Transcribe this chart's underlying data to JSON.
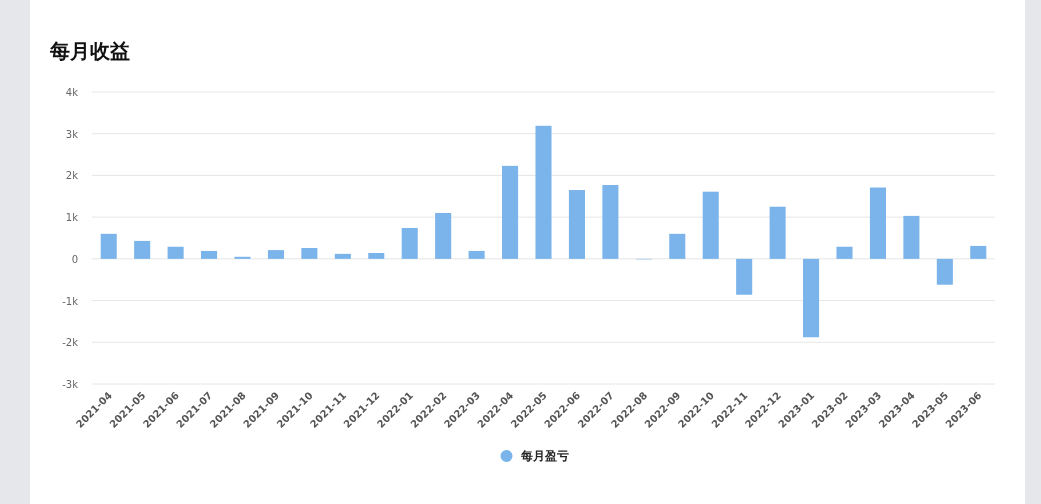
{
  "chart_data": {
    "type": "bar",
    "title": "每月收益",
    "categories": [
      "2021-04",
      "2021-05",
      "2021-06",
      "2021-07",
      "2021-08",
      "2021-09",
      "2021-10",
      "2021-11",
      "2021-12",
      "2022-01",
      "2022-02",
      "2022-03",
      "2022-04",
      "2022-05",
      "2022-06",
      "2022-07",
      "2022-08",
      "2022-09",
      "2022-10",
      "2022-11",
      "2022-12",
      "2023-01",
      "2023-02",
      "2023-03",
      "2023-04",
      "2023-05",
      "2023-06"
    ],
    "series": [
      {
        "name": "每月盈亏",
        "color": "#7ab4ea",
        "values": [
          600,
          430,
          290,
          190,
          50,
          210,
          260,
          120,
          140,
          740,
          1100,
          190,
          2230,
          3190,
          1650,
          1770,
          0,
          600,
          1610,
          -860,
          1250,
          -1880,
          290,
          1710,
          1030,
          -620,
          310
        ]
      }
    ],
    "ylim": [
      -3000,
      4000
    ],
    "yticks": [
      {
        "value": -3000,
        "label": "-3k"
      },
      {
        "value": -2000,
        "label": "-2k"
      },
      {
        "value": -1000,
        "label": "-1k"
      },
      0,
      {
        "value": 1000,
        "label": "1k"
      },
      {
        "value": 2000,
        "label": "2k"
      },
      {
        "value": 3000,
        "label": "3k"
      },
      {
        "value": 4000,
        "label": "4k"
      }
    ],
    "grid": "y",
    "legend": "bottom"
  }
}
